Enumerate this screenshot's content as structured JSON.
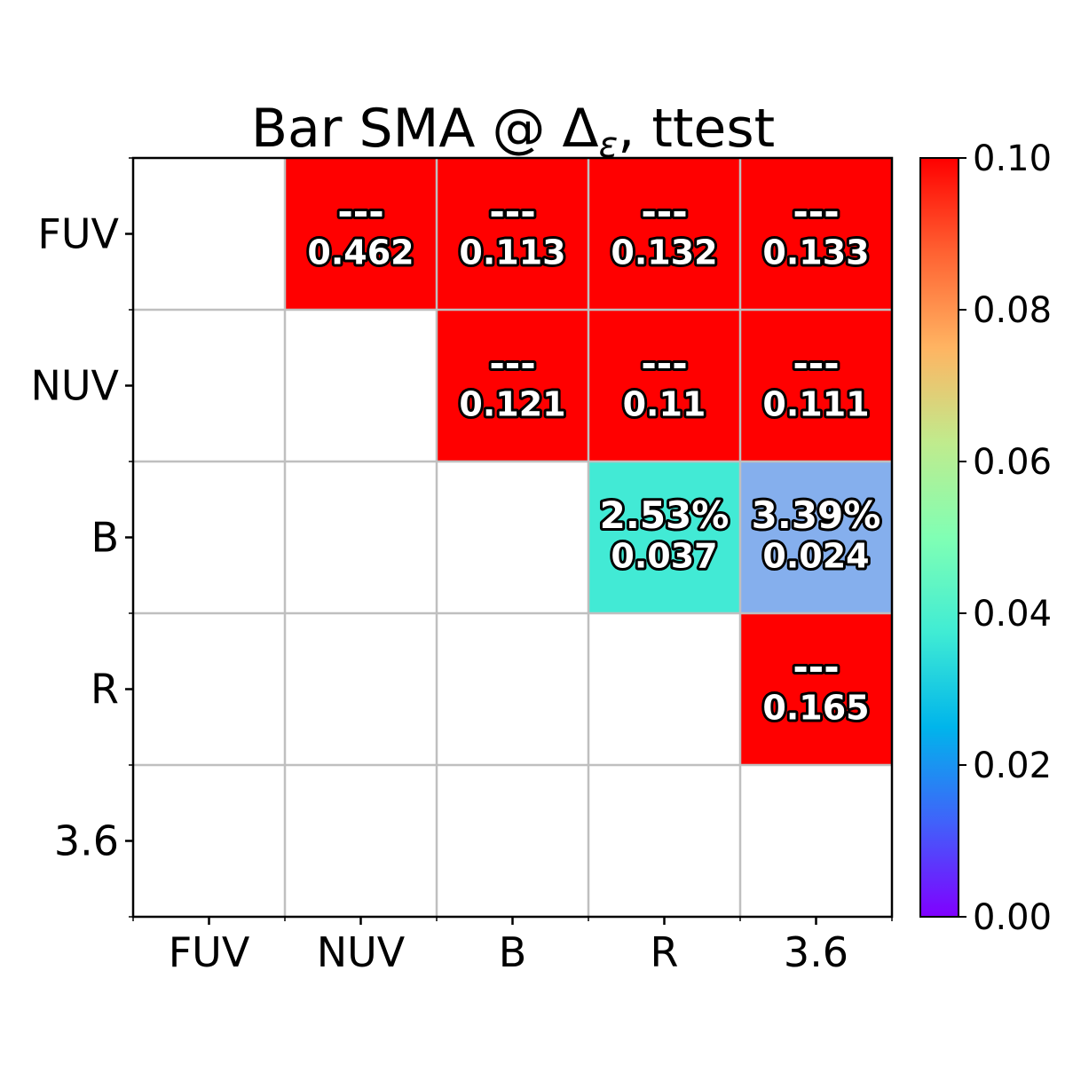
{
  "chart_data": {
    "type": "heatmap",
    "title": "Bar SMA @ Δε, ttest",
    "title_main": "Bar SMA @ Δ",
    "title_sub": "ε",
    "title_tail": ", ttest",
    "row_labels": [
      "FUV",
      "NUV",
      "B",
      "R",
      "3.6"
    ],
    "col_labels": [
      "FUV",
      "NUV",
      "B",
      "R",
      "3.6"
    ],
    "cells": [
      {
        "row": 0,
        "col": 1,
        "value": 0.462,
        "top": "---",
        "bottom": "0.462"
      },
      {
        "row": 0,
        "col": 2,
        "value": 0.113,
        "top": "---",
        "bottom": "0.113"
      },
      {
        "row": 0,
        "col": 3,
        "value": 0.132,
        "top": "---",
        "bottom": "0.132"
      },
      {
        "row": 0,
        "col": 4,
        "value": 0.133,
        "top": "---",
        "bottom": "0.133"
      },
      {
        "row": 1,
        "col": 2,
        "value": 0.121,
        "top": "---",
        "bottom": "0.121"
      },
      {
        "row": 1,
        "col": 3,
        "value": 0.11,
        "top": "---",
        "bottom": "0.11"
      },
      {
        "row": 1,
        "col": 4,
        "value": 0.111,
        "top": "---",
        "bottom": "0.111"
      },
      {
        "row": 2,
        "col": 3,
        "value": 0.037,
        "top": "2.53%",
        "bottom": "0.037"
      },
      {
        "row": 2,
        "col": 4,
        "value": 0.024,
        "top": "3.39%",
        "bottom": "0.024"
      },
      {
        "row": 3,
        "col": 4,
        "value": 0.165,
        "top": "---",
        "bottom": "0.165"
      }
    ],
    "colorbar": {
      "min": 0.0,
      "max": 0.1,
      "ticks": [
        "0.00",
        "0.02",
        "0.04",
        "0.06",
        "0.08",
        "0.10"
      ],
      "colormap": "rainbow"
    },
    "grid": true
  }
}
